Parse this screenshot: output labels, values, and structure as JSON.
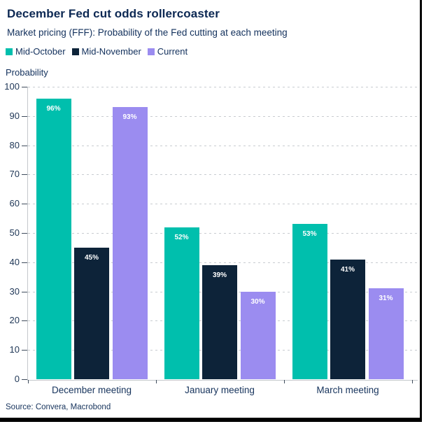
{
  "header": {
    "title": "December Fed cut odds rollercoaster",
    "subtitle": "Market pricing (FFF): Probability of the Fed cutting at each meeting"
  },
  "source": "Source: Convera, Macrobond",
  "colors": {
    "title_text": "#0C2853",
    "body_text": "#16335C",
    "bar_label_text": "#FFFFFF",
    "gridline": "#C8CCD0",
    "axis_line": "#C4C8CC",
    "tick_mark": "#3F4C5C",
    "frame": "#000000"
  },
  "chart_data": {
    "type": "bar",
    "title": "December Fed cut odds rollercoaster",
    "subtitle": "Market pricing (FFF): Probability of the Fed cutting at each meeting",
    "categories": [
      "December meeting",
      "January meeting",
      "March meeting"
    ],
    "series": [
      {
        "name": "Mid-October",
        "color": "#00BFAD",
        "values": [
          96,
          52,
          53
        ]
      },
      {
        "name": "Mid-November",
        "color": "#0D2339",
        "values": [
          45,
          39,
          41
        ]
      },
      {
        "name": "Current",
        "color": "#9B8CF0",
        "values": [
          93,
          30,
          31
        ]
      }
    ],
    "data_labels": [
      [
        "96%",
        "52%",
        "53%"
      ],
      [
        "45%",
        "39%",
        "41%"
      ],
      [
        "93%",
        "30%",
        "31%"
      ]
    ],
    "value_suffix": "%",
    "xlabel": "",
    "ylabel": "Probability",
    "ylim": [
      0,
      100
    ],
    "ytick_step": 10,
    "yticks": [
      0,
      10,
      20,
      30,
      40,
      50,
      60,
      70,
      80,
      90,
      100
    ],
    "grid": "horizontal-dashed",
    "legend_position": "top-left"
  }
}
